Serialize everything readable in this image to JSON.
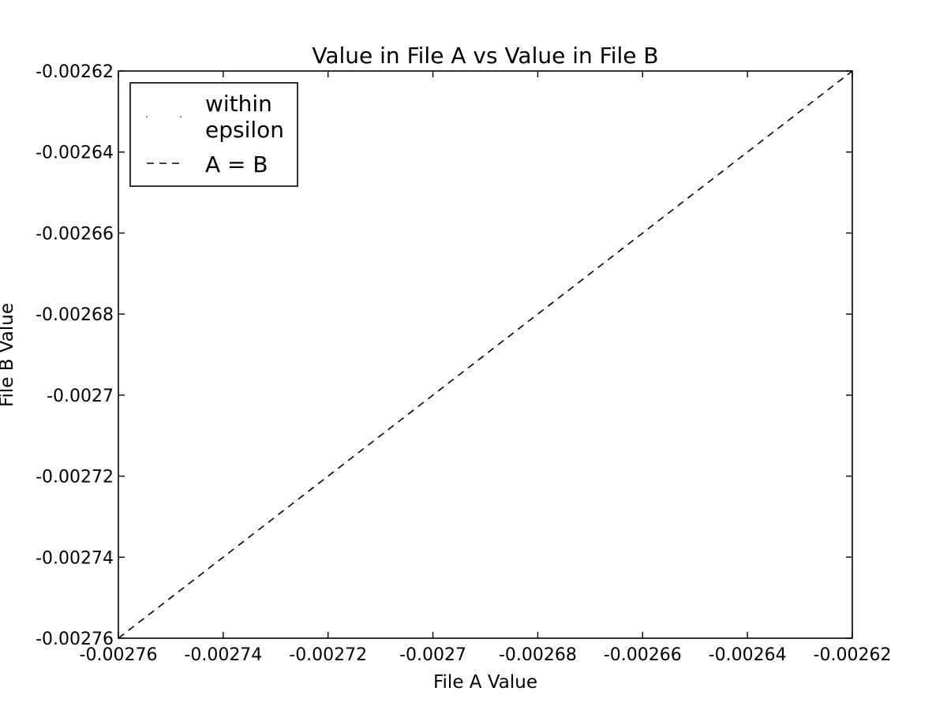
{
  "chart_data": {
    "type": "line",
    "title": "Value in File A vs Value in File B",
    "xlabel": "File A Value",
    "ylabel": "File B Value",
    "xlim": [
      -0.00276,
      -0.00262
    ],
    "ylim": [
      -0.00276,
      -0.00262
    ],
    "xticks": [
      -0.00276,
      -0.00274,
      -0.00272,
      -0.0027,
      -0.00268,
      -0.00266,
      -0.00264,
      -0.00262
    ],
    "xtick_labels": [
      "-0.00276",
      "-0.00274",
      "-0.00272",
      "-0.0027",
      "-0.00268",
      "-0.00266",
      "-0.00264",
      "-0.00262"
    ],
    "yticks": [
      -0.00276,
      -0.00274,
      -0.00272,
      -0.0027,
      -0.00268,
      -0.00266,
      -0.00264,
      -0.00262
    ],
    "ytick_labels": [
      "-0.00276",
      "-0.00274",
      "-0.00272",
      "-0.0027",
      "-0.00268",
      "-0.00266",
      "-0.00264",
      "-0.00262"
    ],
    "grid": false,
    "legend_position": "top-left",
    "series": [
      {
        "name": "within epsilon",
        "legend_lines": [
          "within",
          "epsilon"
        ],
        "style": "points",
        "color": "#000000",
        "x": [],
        "y": []
      },
      {
        "name": "A = B",
        "style": "dashed",
        "color": "#000000",
        "x": [
          -0.00276,
          -0.00262
        ],
        "y": [
          -0.00276,
          -0.00262
        ]
      }
    ]
  }
}
